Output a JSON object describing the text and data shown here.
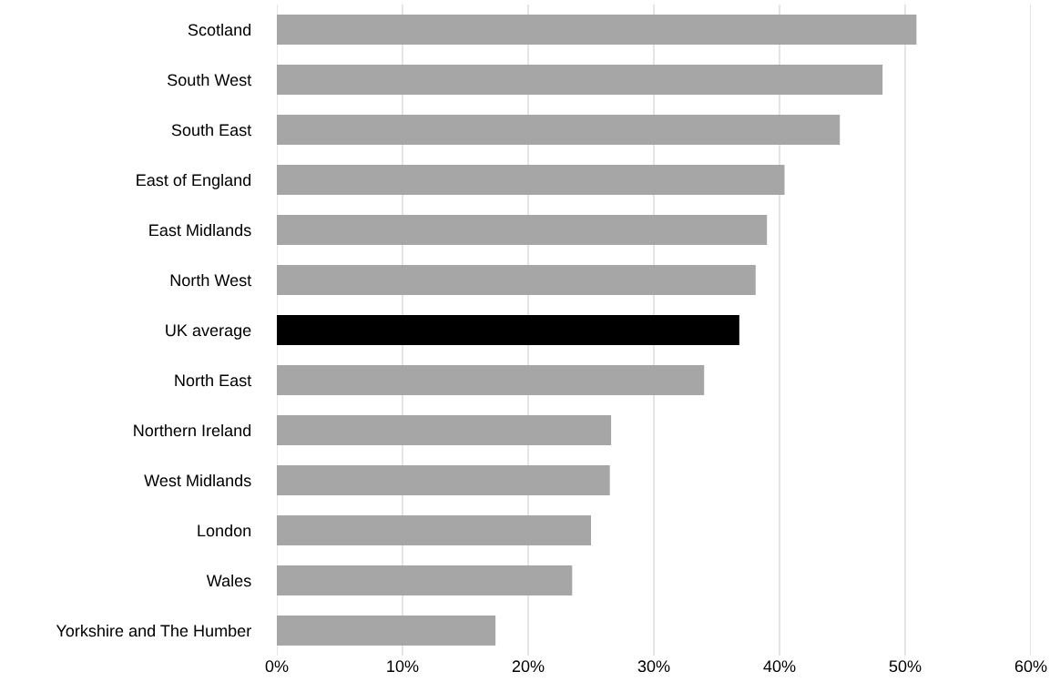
{
  "chart_data": {
    "type": "bar",
    "orientation": "horizontal",
    "categories": [
      "Scotland",
      "South West",
      "South East",
      "East of England",
      "East Midlands",
      "North West",
      "UK average",
      "North East",
      "Northern Ireland",
      "West Midlands",
      "London",
      "Wales",
      "Yorkshire and The Humber"
    ],
    "values": [
      50.9,
      48.2,
      44.8,
      40.4,
      39.0,
      38.1,
      36.8,
      34.0,
      26.6,
      26.5,
      25.0,
      23.5,
      17.4
    ],
    "colors": [
      "#a6a6a6",
      "#a6a6a6",
      "#a6a6a6",
      "#a6a6a6",
      "#a6a6a6",
      "#a6a6a6",
      "#000000",
      "#a6a6a6",
      "#a6a6a6",
      "#a6a6a6",
      "#a6a6a6",
      "#a6a6a6",
      "#a6a6a6"
    ],
    "xlim": [
      0,
      60
    ],
    "xticks": [
      {
        "value": 0,
        "label": "0%"
      },
      {
        "value": 10,
        "label": "10%"
      },
      {
        "value": 20,
        "label": "20%"
      },
      {
        "value": 30,
        "label": "30%"
      },
      {
        "value": 40,
        "label": "40%"
      },
      {
        "value": 50,
        "label": "50%"
      },
      {
        "value": 60,
        "label": "60%"
      }
    ],
    "grid": "x"
  }
}
